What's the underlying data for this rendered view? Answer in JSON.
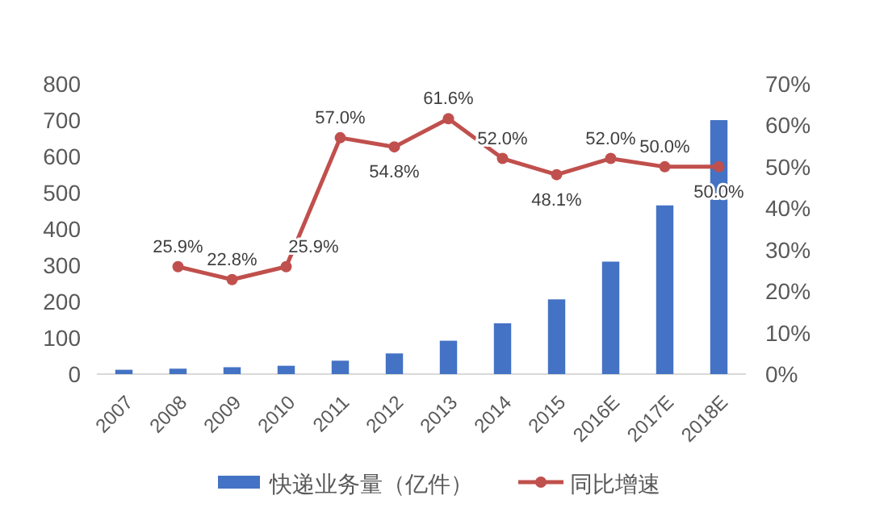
{
  "chart_data": {
    "type": "bar",
    "categories": [
      "2007",
      "2008",
      "2009",
      "2010",
      "2011",
      "2012",
      "2013",
      "2014",
      "2015",
      "2016E",
      "2017E",
      "2018E"
    ],
    "series": [
      {
        "name": "快递业务量（亿件）",
        "color": "#4472c4",
        "values": [
          12,
          15,
          19,
          23,
          37,
          57,
          92,
          140,
          206,
          310,
          465,
          700
        ]
      },
      {
        "name": "同比增速",
        "type": "line",
        "axis": "y2",
        "color": "#c0504d",
        "marker": "circle",
        "values": [
          null,
          25.9,
          22.8,
          25.9,
          57.0,
          54.8,
          61.6,
          52.0,
          48.1,
          52.0,
          50.0,
          50.0
        ],
        "value_labels": [
          null,
          "25.9%",
          "22.8%",
          "25.9%",
          "57.0%",
          "54.8%",
          "61.6%",
          "52.0%",
          "48.1%",
          "52.0%",
          "50.0%",
          "50.0%"
        ]
      }
    ],
    "ylim": [
      0,
      800
    ],
    "yticks": [
      0,
      100,
      200,
      300,
      400,
      500,
      600,
      700,
      800
    ],
    "y2lim": [
      0,
      70
    ],
    "y2ticks": [
      {
        "value": 0,
        "label": "0%"
      },
      {
        "value": 10,
        "label": "10%"
      },
      {
        "value": 20,
        "label": "20%"
      },
      {
        "value": 30,
        "label": "30%"
      },
      {
        "value": 40,
        "label": "40%"
      },
      {
        "value": 50,
        "label": "50%"
      },
      {
        "value": 60,
        "label": "60%"
      },
      {
        "value": 70,
        "label": "70%"
      }
    ],
    "legend": "bottom"
  }
}
